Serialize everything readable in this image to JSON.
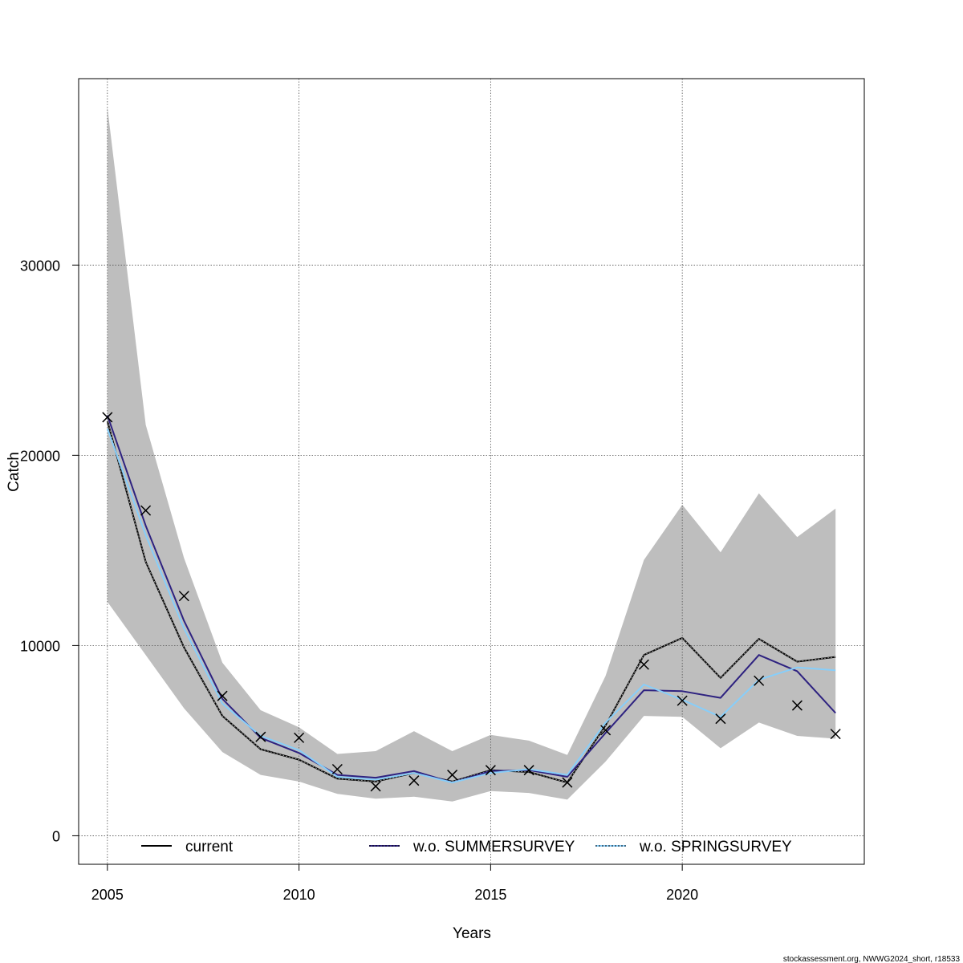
{
  "chart_data": {
    "type": "line",
    "xlabel": "Years",
    "ylabel": "Catch",
    "xlim": [
      2004.25,
      2024.75
    ],
    "ylim": [
      -1500,
      39800
    ],
    "x_ticks": [
      2005,
      2010,
      2015,
      2020
    ],
    "y_ticks": [
      0,
      10000,
      20000,
      30000
    ],
    "grid": true,
    "legend_placement": "bottom",
    "x": [
      2005,
      2006,
      2007,
      2008,
      2009,
      2010,
      2011,
      2012,
      2013,
      2014,
      2015,
      2016,
      2017,
      2018,
      2019,
      2020,
      2021,
      2022,
      2023,
      2024
    ],
    "confidence_band": {
      "color": "#bebebe",
      "lower": [
        12300,
        9500,
        6700,
        4400,
        3200,
        2850,
        2200,
        1950,
        2050,
        1800,
        2350,
        2250,
        1900,
        3900,
        6300,
        6250,
        4600,
        5950,
        5250,
        5100
      ],
      "upper": [
        38300,
        21600,
        14600,
        9100,
        6600,
        5700,
        4300,
        4450,
        5500,
        4450,
        5300,
        5000,
        4250,
        8400,
        14500,
        17400,
        14900,
        18000,
        15700,
        17200
      ]
    },
    "series": [
      {
        "name": "current",
        "color": "#000000",
        "values": [
          21800,
          14400,
          9900,
          6300,
          4550,
          4000,
          3000,
          2850,
          3300,
          2850,
          3450,
          3350,
          2800,
          5800,
          9500,
          10400,
          8300,
          10350,
          9150,
          9400
        ]
      },
      {
        "name": "w.o. SUMMERSURVEY",
        "color": "#2e2280",
        "values": [
          22100,
          16300,
          11300,
          7200,
          5150,
          4350,
          3200,
          3050,
          3400,
          2800,
          3400,
          3450,
          3100,
          5400,
          7650,
          7600,
          7250,
          9500,
          8650,
          6450
        ]
      },
      {
        "name": "w.o. SPRINGSURVEY",
        "color": "#87cefa",
        "values": [
          21400,
          15800,
          10900,
          6950,
          5250,
          4500,
          3100,
          2950,
          3300,
          2800,
          3300,
          3500,
          3200,
          5950,
          7950,
          7150,
          6250,
          8200,
          8850,
          8700
        ]
      }
    ],
    "observations": {
      "marker": "x",
      "values": [
        22000,
        17100,
        12600,
        7350,
        5200,
        5150,
        3500,
        2600,
        2900,
        3200,
        3450,
        3450,
        2800,
        5550,
        9000,
        7100,
        6150,
        8150,
        6850,
        5350
      ]
    }
  },
  "footer": "stockassessment.org, NWWG2024_short, r18533"
}
